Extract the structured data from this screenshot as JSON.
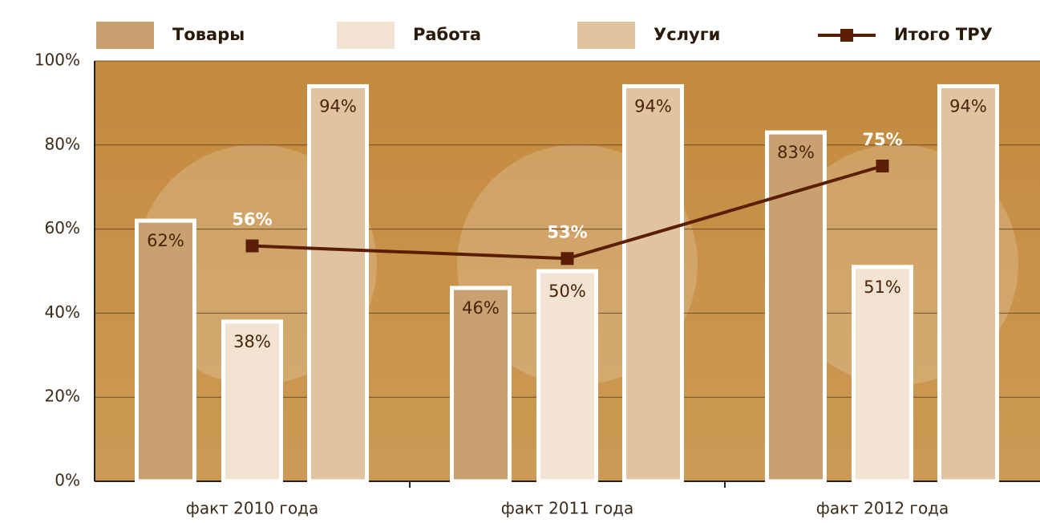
{
  "chart_data": {
    "type": "bar",
    "categories": [
      "факт 2010 года",
      "факт 2011 года",
      "факт 2012 года"
    ],
    "series": [
      {
        "name": "Товары",
        "color": "#c9a171",
        "values": [
          62,
          46,
          83
        ],
        "value_labels": [
          "62%",
          "46%",
          "83%"
        ]
      },
      {
        "name": "Работа",
        "color": "#f2e3d2",
        "values": [
          38,
          50,
          51
        ],
        "value_labels": [
          "38%",
          "50%",
          "51%"
        ]
      },
      {
        "name": "Услуги",
        "color": "#e0c4a2",
        "values": [
          94,
          94,
          94
        ],
        "value_labels": [
          "94%",
          "94%",
          "94%"
        ]
      },
      {
        "name": "Итого ТРУ",
        "type": "line",
        "color": "#5a1e05",
        "values": [
          56,
          53,
          75
        ],
        "value_labels": [
          "56%",
          "53%",
          "75%"
        ]
      }
    ],
    "ylim": [
      0,
      100
    ],
    "yticks": [
      {
        "value": 0,
        "label": "0%"
      },
      {
        "value": 20,
        "label": "20%"
      },
      {
        "value": 40,
        "label": "40%"
      },
      {
        "value": 60,
        "label": "60%"
      },
      {
        "value": 80,
        "label": "80%"
      },
      {
        "value": 100,
        "label": "100%"
      }
    ],
    "grid": true,
    "legend": "top"
  }
}
